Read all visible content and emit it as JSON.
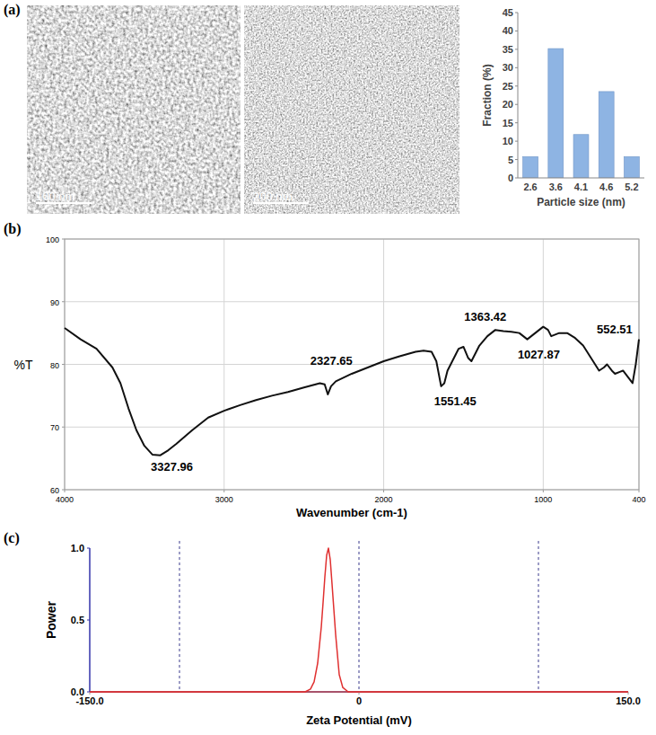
{
  "chart_data": [
    {
      "type": "image",
      "panel": "(a)",
      "scale_bar": "100 nm"
    },
    {
      "type": "image",
      "scale_bar": "200 nm"
    },
    {
      "type": "bar",
      "categories": [
        "2.6",
        "3.6",
        "4.1",
        "4.6",
        "5.2"
      ],
      "values": [
        5.8,
        35.2,
        11.8,
        23.5,
        5.8
      ],
      "color": "#8eb4e3",
      "xlabel": "Particle size (nm)",
      "ylabel": "Fraction (%)",
      "ylim": [
        0,
        45
      ],
      "yticks": [
        0,
        5,
        10,
        15,
        20,
        25,
        30,
        35,
        40,
        45
      ]
    },
    {
      "type": "line",
      "panel": "(b)",
      "x": [
        4000,
        3900,
        3800,
        3700,
        3650,
        3600,
        3550,
        3500,
        3450,
        3400,
        3350,
        3300,
        3200,
        3100,
        3000,
        2900,
        2800,
        2700,
        2600,
        2500,
        2400,
        2370,
        2350,
        2330,
        2300,
        2200,
        2100,
        2000,
        1900,
        1800,
        1750,
        1700,
        1670,
        1640,
        1620,
        1600,
        1560,
        1530,
        1500,
        1470,
        1450,
        1420,
        1400,
        1350,
        1300,
        1250,
        1200,
        1150,
        1100,
        1050,
        1000,
        970,
        950,
        900,
        850,
        800,
        750,
        700,
        650,
        620,
        600,
        570,
        550,
        520,
        500,
        470,
        440,
        420,
        400
      ],
      "values": [
        85.8,
        84,
        82.5,
        79.5,
        77,
        73,
        69.5,
        67,
        65.6,
        65.5,
        66.3,
        67.3,
        69.5,
        71.5,
        72.6,
        73.5,
        74.3,
        75,
        75.6,
        76.3,
        77,
        76.8,
        75.2,
        76.5,
        77.3,
        78.5,
        79.5,
        80.5,
        81.3,
        82,
        82.2,
        82,
        80.5,
        76.5,
        77,
        79,
        81,
        82.5,
        82.8,
        81,
        80.5,
        82,
        83,
        84.5,
        85.5,
        85.3,
        85.2,
        85,
        84,
        85,
        86,
        85.5,
        84.5,
        85,
        85,
        84.2,
        83,
        81,
        79,
        79.5,
        80,
        79,
        78.5,
        78.8,
        79,
        78,
        77,
        80,
        84
      ],
      "color": "#111111",
      "xlabel": "Wavenumber (cm-1)",
      "ylabel": "%T",
      "xlim": [
        4000,
        400
      ],
      "xticks": [
        4000,
        3000,
        2000,
        1000,
        400
      ],
      "ylim": [
        60,
        100
      ],
      "yticks": [
        60,
        70,
        80,
        90,
        100
      ],
      "grid": true,
      "annotations": [
        {
          "text": "3327.96",
          "x": 3327.96,
          "y": 63
        },
        {
          "text": "2327.65",
          "x": 2327.65,
          "y": 80
        },
        {
          "text": "1551.45",
          "x": 1551.45,
          "y": 73.5
        },
        {
          "text": "1363.42",
          "x": 1363.42,
          "y": 87
        },
        {
          "text": "1027.87",
          "x": 1027.87,
          "y": 81
        },
        {
          "text": "552.51",
          "x": 552.51,
          "y": 85
        }
      ]
    },
    {
      "type": "line",
      "panel": "(c)",
      "x": [
        -150,
        -30,
        -27,
        -25,
        -23,
        -21,
        -20,
        -19,
        -18,
        -17,
        -16,
        -15,
        -13,
        -11,
        -9,
        -6,
        150
      ],
      "values": [
        0,
        0,
        0.02,
        0.07,
        0.2,
        0.45,
        0.62,
        0.8,
        0.95,
        1,
        0.92,
        0.75,
        0.4,
        0.12,
        0.03,
        0,
        0
      ],
      "color": "#e03030",
      "xlabel": "Zeta Potential (mV)",
      "ylabel": "Power",
      "xlim": [
        -150,
        150
      ],
      "xticks": [
        {
          "value": -150,
          "label": "-150.0"
        },
        0,
        {
          "value": 150,
          "label": "150.0"
        }
      ],
      "ylim": [
        0,
        1
      ],
      "yticks": [
        {
          "value": 0,
          "label": "0.0"
        },
        {
          "value": 0.5,
          "label": "0.5"
        },
        {
          "value": 1,
          "label": "1.0"
        }
      ],
      "vlines": [
        -100,
        0,
        100
      ]
    }
  ]
}
